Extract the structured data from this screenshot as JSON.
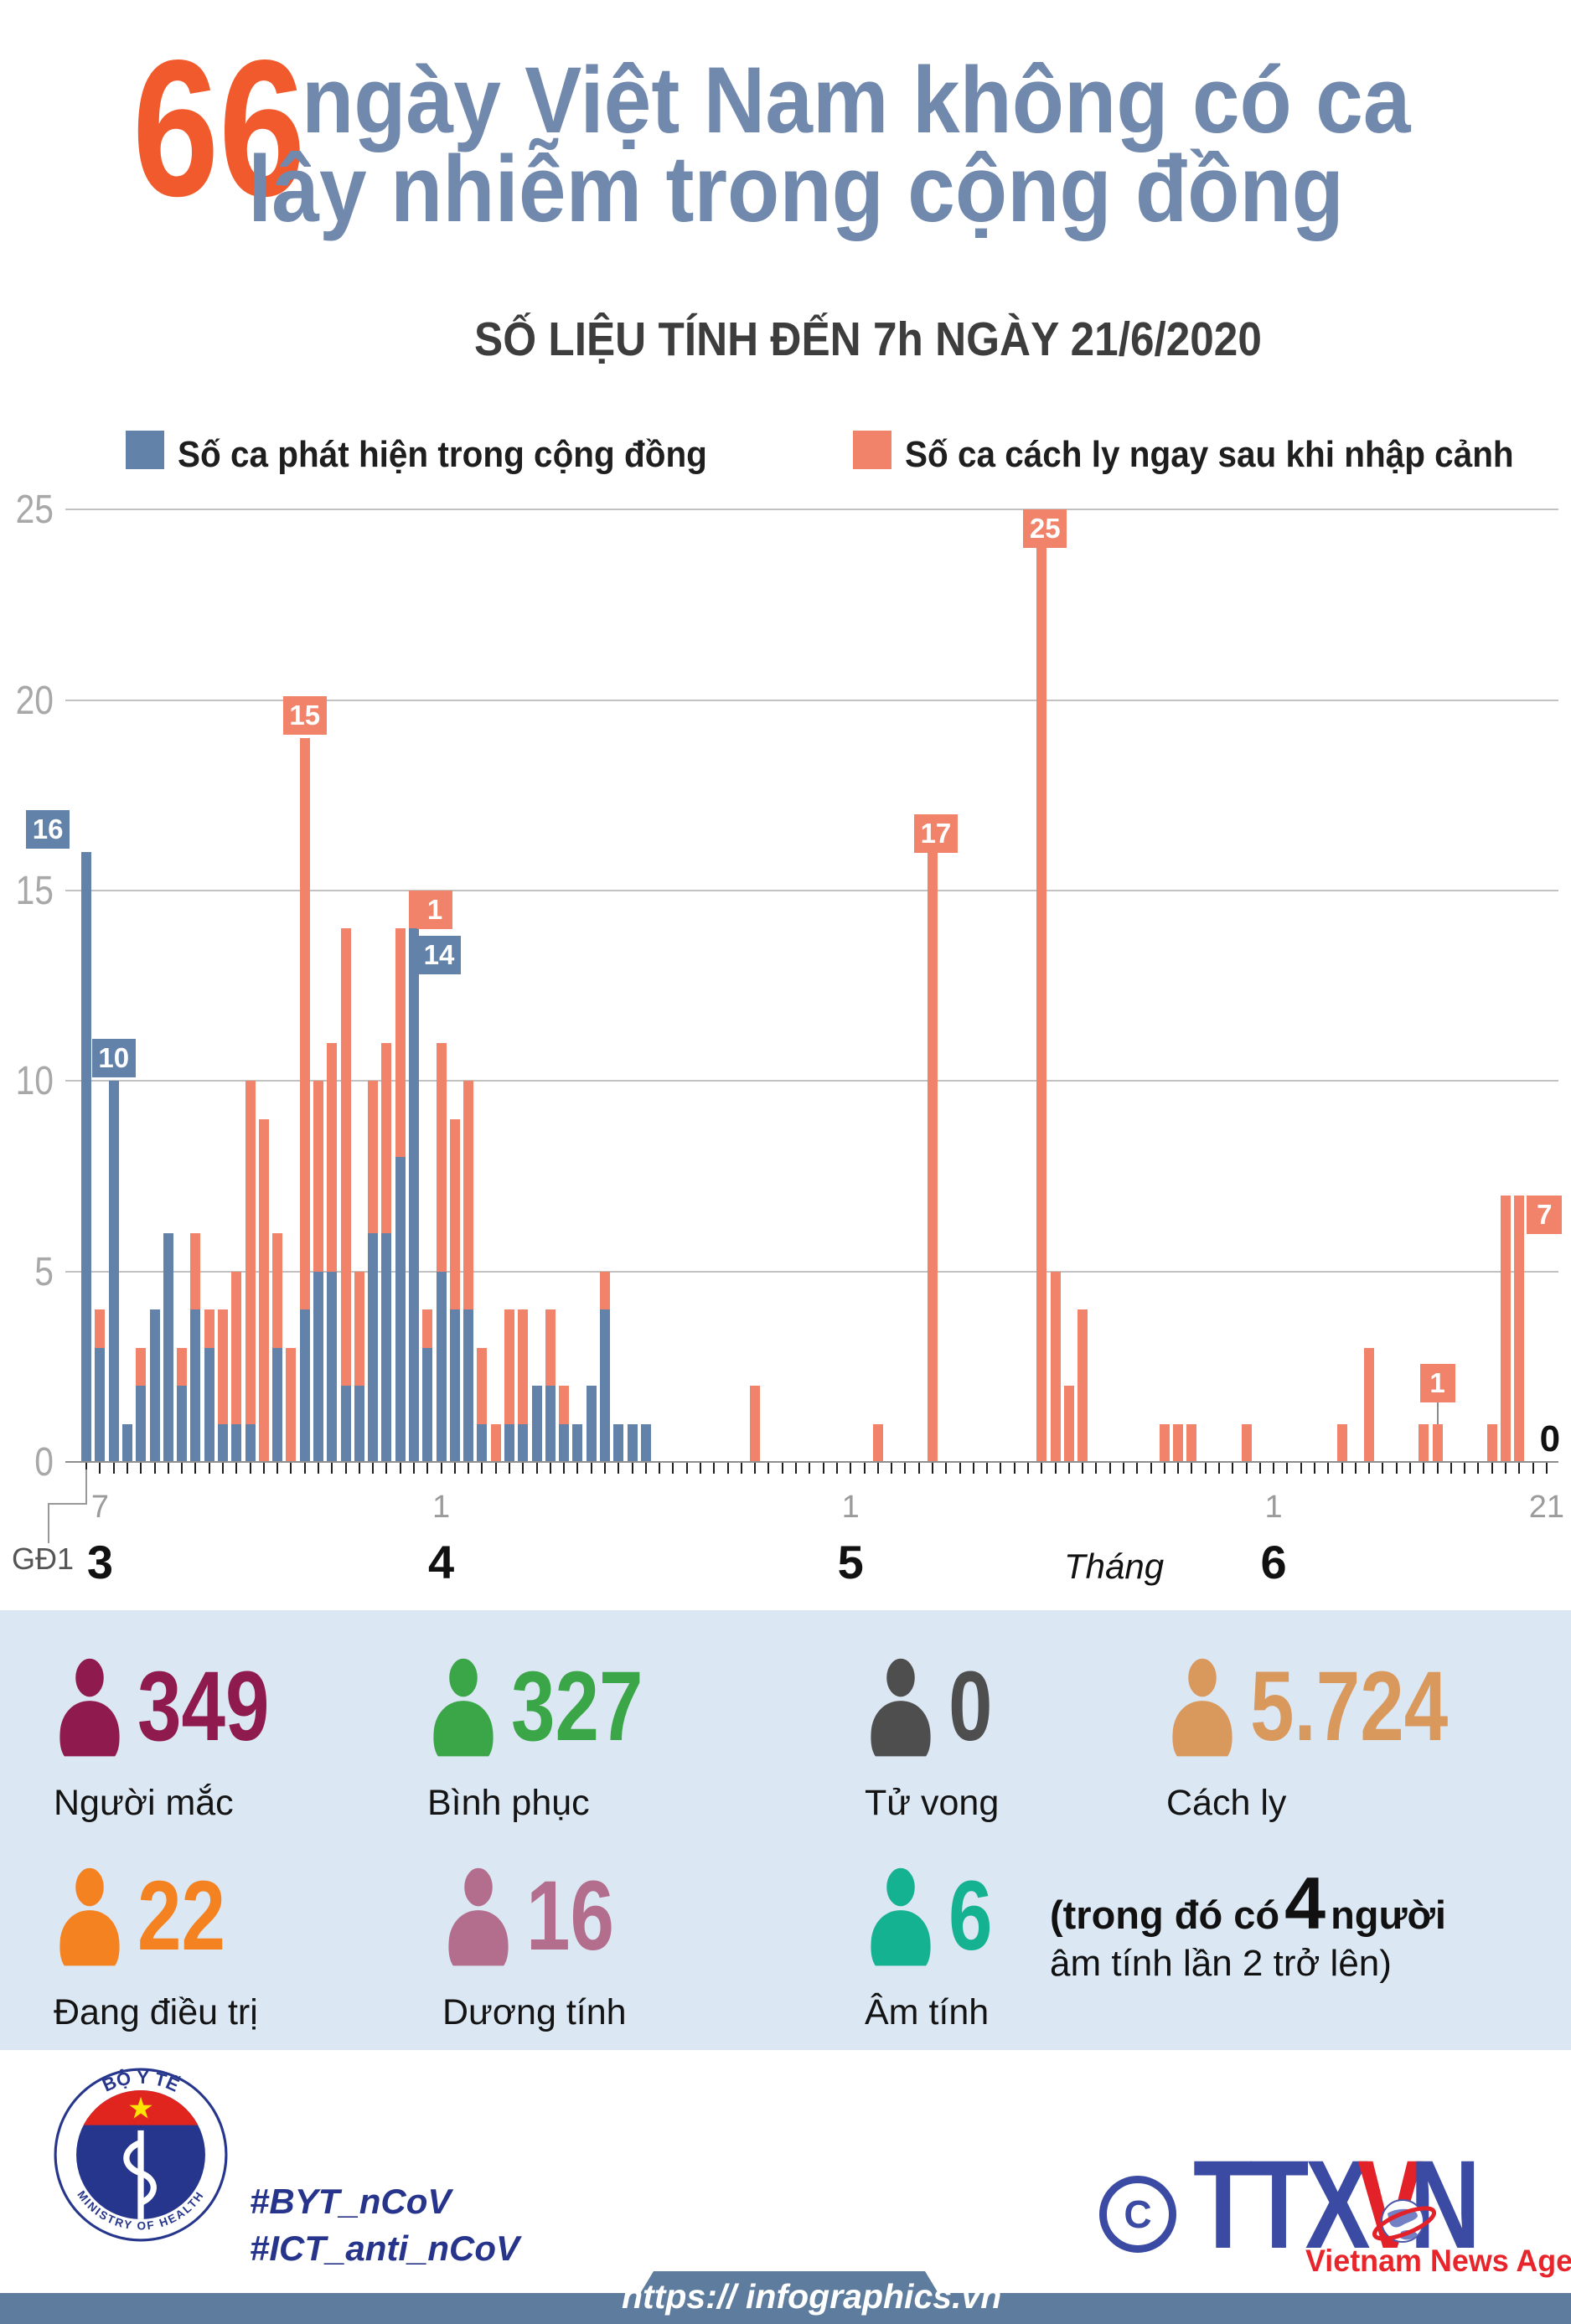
{
  "header": {
    "big_number": "66",
    "title_line1": "ngày Việt Nam không có ca",
    "title_line2": "lây nhiễm trong cộng đồng",
    "subtitle": "SỐ LIỆU TÍNH ĐẾN 7h NGÀY 21/6/2020"
  },
  "legend": [
    {
      "label": "Số ca phát hiện trong cộng đồng",
      "color": "#6282AA"
    },
    {
      "label": "Số ca cách ly ngay sau khi nhập cảnh",
      "color": "#F1836B"
    }
  ],
  "chart_data": {
    "type": "bar",
    "stacked": true,
    "title": "66 ngày Việt Nam không có ca lây nhiễm trong cộng đồng",
    "ylim": [
      0,
      25
    ],
    "y_ticks": [
      25,
      20,
      15,
      10,
      5,
      0
    ],
    "grid": true,
    "legend_position": "top",
    "series_names": [
      "Số ca phát hiện trong cộng đồng",
      "Số ca cách ly ngay sau khi nhập cảnh"
    ],
    "categories": [
      "GĐ1",
      "7/3",
      "8/3",
      "9/3",
      "10/3",
      "11/3",
      "12/3",
      "13/3",
      "14/3",
      "15/3",
      "16/3",
      "17/3",
      "18/3",
      "19/3",
      "20/3",
      "21/3",
      "22/3",
      "23/3",
      "24/3",
      "25/3",
      "26/3",
      "27/3",
      "28/3",
      "29/3",
      "30/3",
      "31/3",
      "1/4",
      "2/4",
      "3/4",
      "4/4",
      "5/4",
      "6/4",
      "7/4",
      "8/4",
      "9/4",
      "10/4",
      "11/4",
      "12/4",
      "13/4",
      "14/4",
      "15/4",
      "16/4",
      "17/4",
      "18/4",
      "19/4",
      "20/4",
      "21/4",
      "22/4",
      "23/4",
      "24/4",
      "25/4",
      "26/4",
      "27/4",
      "28/4",
      "29/4",
      "30/4",
      "1/5",
      "2/5",
      "3/5",
      "4/5",
      "5/5",
      "6/5",
      "7/5",
      "8/5",
      "9/5",
      "10/5",
      "11/5",
      "12/5",
      "13/5",
      "14/5",
      "15/5",
      "16/5",
      "17/5",
      "18/5",
      "19/5",
      "20/5",
      "21/5",
      "22/5",
      "23/5",
      "24/5",
      "25/5",
      "26/5",
      "27/5",
      "28/5",
      "29/5",
      "30/5",
      "31/5",
      "1/6",
      "2/6",
      "3/6",
      "4/6",
      "5/6",
      "6/6",
      "7/6",
      "8/6",
      "9/6",
      "10/6",
      "11/6",
      "12/6",
      "13/6",
      "14/6",
      "15/6",
      "16/6",
      "17/6",
      "18/6",
      "19/6",
      "20/6",
      "21/6"
    ],
    "community": [
      16,
      3,
      10,
      1,
      2,
      4,
      6,
      2,
      4,
      3,
      1,
      1,
      1,
      0,
      3,
      0,
      4,
      5,
      5,
      2,
      2,
      6,
      6,
      8,
      14,
      3,
      5,
      4,
      4,
      1,
      0,
      1,
      1,
      2,
      2,
      1,
      1,
      2,
      4,
      1,
      1,
      1,
      0,
      0,
      0,
      0,
      0,
      0,
      0,
      0,
      0,
      0,
      0,
      0,
      0,
      0,
      0,
      0,
      0,
      0,
      0,
      0,
      0,
      0,
      0,
      0,
      0,
      0,
      0,
      0,
      0,
      0,
      0,
      0,
      0,
      0,
      0,
      0,
      0,
      0,
      0,
      0,
      0,
      0,
      0,
      0,
      0,
      0,
      0,
      0,
      0,
      0,
      0,
      0,
      0,
      0,
      0,
      0,
      0,
      0,
      0,
      0,
      0,
      0,
      0,
      0,
      0,
      0
    ],
    "imported": [
      0,
      1,
      0,
      0,
      1,
      0,
      0,
      1,
      2,
      1,
      3,
      4,
      9,
      9,
      3,
      3,
      15,
      5,
      6,
      12,
      3,
      4,
      5,
      6,
      1,
      1,
      6,
      5,
      6,
      2,
      1,
      3,
      3,
      0,
      2,
      1,
      0,
      0,
      1,
      0,
      0,
      0,
      0,
      0,
      0,
      0,
      0,
      0,
      0,
      2,
      0,
      0,
      0,
      0,
      0,
      0,
      0,
      0,
      1,
      0,
      0,
      0,
      17,
      0,
      0,
      0,
      0,
      0,
      0,
      0,
      25,
      5,
      2,
      4,
      0,
      0,
      0,
      0,
      0,
      1,
      1,
      1,
      0,
      0,
      0,
      1,
      0,
      0,
      0,
      0,
      0,
      0,
      1,
      0,
      3,
      0,
      0,
      0,
      1,
      1,
      0,
      0,
      0,
      1,
      7,
      7,
      0,
      0
    ],
    "annotations": [
      {
        "i": 0,
        "text": "16",
        "color": "blue",
        "mode": "above",
        "dx": -46
      },
      {
        "i": 2,
        "text": "10",
        "color": "blue",
        "mode": "above",
        "dx": 0
      },
      {
        "i": 16,
        "text": "15",
        "color": "orange",
        "mode": "above",
        "dx": 0
      },
      {
        "i": 24,
        "text": "1",
        "color": "orange",
        "mode": "stack0",
        "dx": 4
      },
      {
        "i": 24,
        "text": "14",
        "color": "blue",
        "mode": "stack1",
        "dx": 4
      },
      {
        "i": 62,
        "text": "17",
        "color": "orange",
        "mode": "flag",
        "dx": 4
      },
      {
        "i": 70,
        "text": "25",
        "color": "orange",
        "mode": "flag",
        "dx": 4
      },
      {
        "i": 99,
        "text": "1",
        "color": "orange",
        "mode": "float",
        "dx": 0
      },
      {
        "i": 105,
        "text": "7",
        "color": "orange",
        "mode": "flag",
        "dx": 30
      },
      {
        "i": 107,
        "text": "0",
        "color": "black",
        "mode": "text",
        "dx": 4
      }
    ],
    "x_tick_labels": [
      {
        "i": 1,
        "t": "7"
      },
      {
        "i": 26,
        "t": "1"
      },
      {
        "i": 56,
        "t": "1"
      },
      {
        "i": 87,
        "t": "1"
      },
      {
        "i": 107,
        "t": "21"
      }
    ],
    "month_labels": [
      {
        "i": 1,
        "t": "3"
      },
      {
        "i": 26,
        "t": "4"
      },
      {
        "i": 56,
        "t": "5"
      },
      {
        "i": 87,
        "t": "6"
      }
    ],
    "xlabel": "Tháng",
    "phase_label": "GĐ1"
  },
  "stats": {
    "cards": [
      {
        "value": "349",
        "label": "Người mắc",
        "color": "#8F1A4D"
      },
      {
        "value": "327",
        "label": "Bình phục",
        "color": "#3AA648"
      },
      {
        "value": "0",
        "label": "Tử vong",
        "color": "#4E4E4E"
      },
      {
        "value": "5.724",
        "label": "Cách ly",
        "color": "#D9995D"
      },
      {
        "value": "22",
        "label": "Đang điều trị",
        "color": "#F58220"
      },
      {
        "value": "16",
        "label": "Dương tính",
        "color": "#B26E8C"
      },
      {
        "value": "6",
        "label": "Âm tính",
        "color": "#14B291"
      }
    ],
    "note": {
      "pre": "(trong đó có",
      "big": "4",
      "post": "người",
      "line2": "âm tính lần 2 trở lên)"
    }
  },
  "footer": {
    "moh_ring_top": "BỘ Y TẾ",
    "moh_ring_bottom": "MINISTRY OF HEALTH",
    "hashtag1": "#BYT_nCoV",
    "hashtag2": "#ICT_anti_nCoV",
    "copyright": "C",
    "agency_letters1": "TTX",
    "agency_letter_v": "V",
    "agency_letter_n": "N",
    "agency_name": "Vietnam News Agency",
    "url": "https:// infographics.vn"
  }
}
